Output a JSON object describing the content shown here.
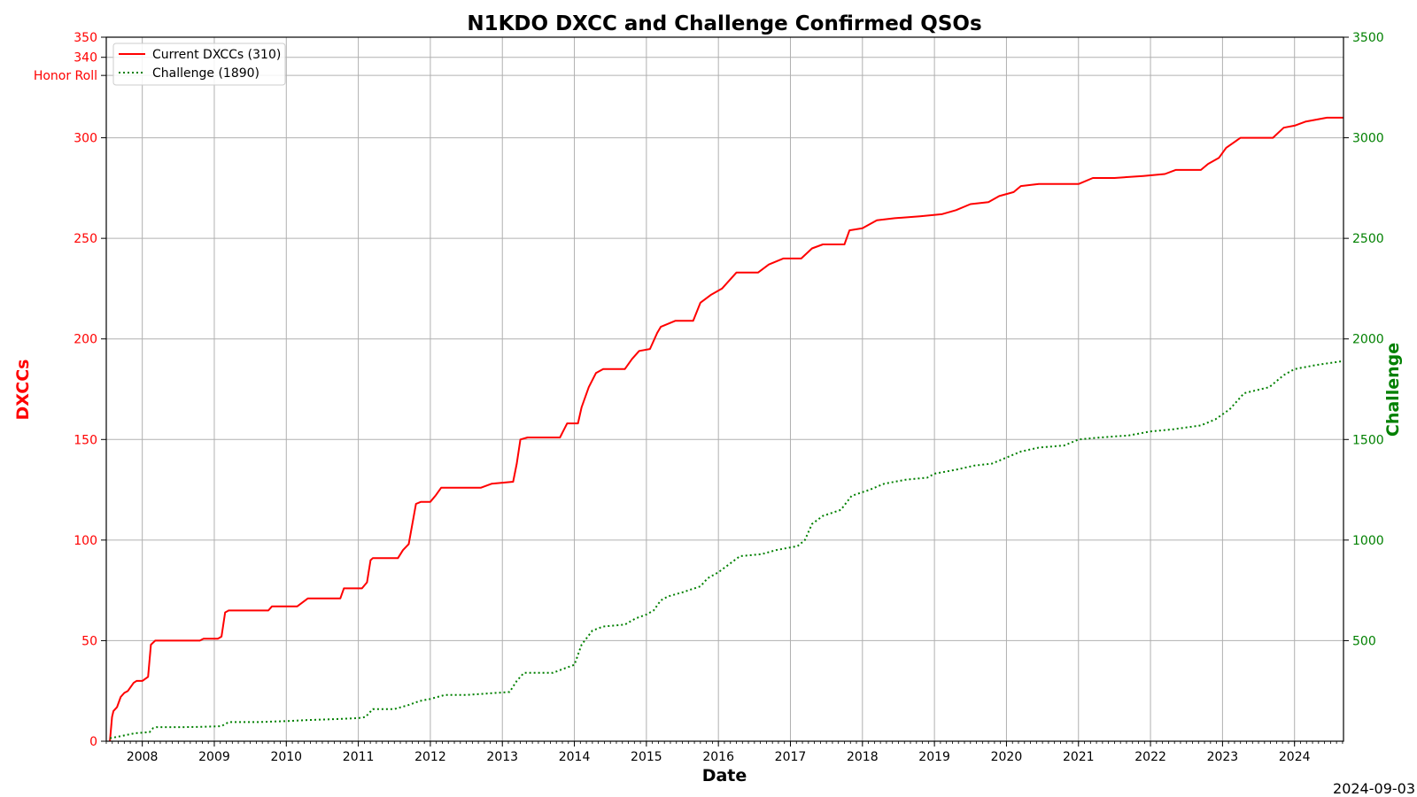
{
  "chart_data": {
    "type": "line",
    "title": "N1KDO DXCC and Challenge Confirmed QSOs",
    "xlabel": "Date",
    "ylabel_left": "DXCCs",
    "ylabel_right": "Challenge",
    "footer_date": "2024-09-03",
    "grid": true,
    "legend_position": "top-left",
    "xlim": [
      2007.5,
      2024.68
    ],
    "ylim_left": [
      0,
      350
    ],
    "ylim_right": [
      0,
      3500
    ],
    "x_ticks": [
      2008,
      2009,
      2010,
      2011,
      2012,
      2013,
      2014,
      2015,
      2016,
      2017,
      2018,
      2019,
      2020,
      2021,
      2022,
      2023,
      2024
    ],
    "x_tick_labels": [
      "2008",
      "2009",
      "2010",
      "2011",
      "2012",
      "2013",
      "2014",
      "2015",
      "2016",
      "2017",
      "2018",
      "2019",
      "2020",
      "2021",
      "2022",
      "2023",
      "2024"
    ],
    "y_left_ticks": [
      0,
      50,
      100,
      150,
      200,
      250,
      300,
      340,
      350
    ],
    "y_left_tick_labels": [
      "0",
      "50",
      "100",
      "150",
      "200",
      "250",
      "300",
      "340",
      "350"
    ],
    "honor_roll": {
      "value": 331,
      "label": "Honor Roll"
    },
    "y_right_ticks": [
      500,
      1000,
      1500,
      2000,
      2500,
      3000,
      3500
    ],
    "y_right_tick_labels": [
      "500",
      "1000",
      "1500",
      "2000",
      "2500",
      "3000",
      "3500"
    ],
    "series": [
      {
        "name": "Current DXCCs (310)",
        "axis": "left",
        "color": "#ff0000",
        "style": "solid",
        "x": [
          2007.55,
          2007.58,
          2007.6,
          2007.65,
          2007.7,
          2007.75,
          2007.8,
          2007.88,
          2007.92,
          2008.0,
          2008.08,
          2008.12,
          2008.18,
          2008.2,
          2008.25,
          2008.5,
          2008.8,
          2008.85,
          2009.05,
          2009.1,
          2009.15,
          2009.2,
          2009.5,
          2009.75,
          2009.8,
          2010.15,
          2010.3,
          2010.75,
          2010.8,
          2011.05,
          2011.12,
          2011.17,
          2011.2,
          2011.55,
          2011.62,
          2011.7,
          2011.75,
          2011.8,
          2011.87,
          2012.0,
          2012.07,
          2012.15,
          2012.5,
          2012.7,
          2012.85,
          2013.15,
          2013.2,
          2013.25,
          2013.35,
          2013.8,
          2013.9,
          2014.05,
          2014.1,
          2014.2,
          2014.3,
          2014.4,
          2014.7,
          2014.8,
          2014.9,
          2015.05,
          2015.15,
          2015.2,
          2015.4,
          2015.65,
          2015.75,
          2015.9,
          2016.05,
          2016.15,
          2016.25,
          2016.55,
          2016.7,
          2016.9,
          2017.15,
          2017.3,
          2017.45,
          2017.75,
          2017.82,
          2018.0,
          2018.1,
          2018.2,
          2018.45,
          2018.8,
          2019.1,
          2019.3,
          2019.5,
          2019.75,
          2019.9,
          2020.1,
          2020.2,
          2020.45,
          2020.6,
          2021.0,
          2021.2,
          2021.5,
          2021.9,
          2022.2,
          2022.35,
          2022.7,
          2022.8,
          2022.95,
          2023.05,
          2023.25,
          2023.7,
          2023.85,
          2024.0,
          2024.15,
          2024.3,
          2024.45,
          2024.68
        ],
        "values": [
          0,
          12,
          15,
          17,
          22,
          24,
          25,
          29,
          30,
          30,
          32,
          48,
          50,
          50,
          50,
          50,
          50,
          51,
          51,
          52,
          64,
          65,
          65,
          65,
          67,
          67,
          71,
          71,
          76,
          76,
          79,
          90,
          91,
          91,
          95,
          98,
          108,
          118,
          119,
          119,
          122,
          126,
          126,
          126,
          128,
          129,
          138,
          150,
          151,
          151,
          158,
          158,
          166,
          176,
          183,
          185,
          185,
          190,
          194,
          195,
          203,
          206,
          209,
          209,
          218,
          222,
          225,
          229,
          233,
          233,
          237,
          240,
          240,
          245,
          247,
          247,
          254,
          255,
          257,
          259,
          260,
          261,
          262,
          264,
          267,
          268,
          271,
          273,
          276,
          277,
          277,
          277,
          280,
          280,
          281,
          282,
          284,
          284,
          287,
          290,
          295,
          300,
          300,
          305,
          306,
          308,
          309,
          310,
          310
        ]
      },
      {
        "name": "Challenge (1890)",
        "axis": "right",
        "color": "#008000",
        "style": "dotted",
        "x": [
          2007.55,
          2007.7,
          2007.9,
          2008.1,
          2008.15,
          2008.2,
          2008.6,
          2008.9,
          2009.1,
          2009.2,
          2009.6,
          2010.0,
          2010.3,
          2010.7,
          2011.0,
          2011.1,
          2011.2,
          2011.5,
          2011.7,
          2011.85,
          2012.0,
          2012.1,
          2012.2,
          2012.5,
          2012.9,
          2013.1,
          2013.2,
          2013.3,
          2013.7,
          2013.85,
          2014.0,
          2014.1,
          2014.25,
          2014.4,
          2014.7,
          2014.85,
          2015.0,
          2015.1,
          2015.2,
          2015.3,
          2015.5,
          2015.75,
          2015.85,
          2016.0,
          2016.15,
          2016.3,
          2016.6,
          2016.8,
          2017.1,
          2017.2,
          2017.3,
          2017.45,
          2017.7,
          2017.85,
          2018.1,
          2018.3,
          2018.6,
          2018.9,
          2019.0,
          2019.3,
          2019.55,
          2019.8,
          2020.0,
          2020.2,
          2020.45,
          2020.8,
          2021.0,
          2021.3,
          2021.7,
          2022.0,
          2022.3,
          2022.7,
          2022.9,
          2023.1,
          2023.3,
          2023.65,
          2023.85,
          2024.0,
          2024.3,
          2024.68
        ],
        "values": [
          15,
          25,
          40,
          45,
          65,
          70,
          70,
          72,
          75,
          95,
          95,
          100,
          105,
          110,
          115,
          120,
          160,
          160,
          180,
          200,
          210,
          220,
          230,
          230,
          240,
          245,
          300,
          340,
          340,
          360,
          380,
          480,
          550,
          570,
          580,
          610,
          630,
          650,
          700,
          720,
          740,
          770,
          810,
          840,
          880,
          920,
          930,
          950,
          970,
          1000,
          1080,
          1120,
          1150,
          1220,
          1250,
          1280,
          1300,
          1310,
          1330,
          1350,
          1370,
          1380,
          1410,
          1440,
          1460,
          1470,
          1500,
          1510,
          1520,
          1540,
          1550,
          1570,
          1600,
          1650,
          1730,
          1760,
          1820,
          1850,
          1870,
          1890
        ]
      }
    ]
  }
}
